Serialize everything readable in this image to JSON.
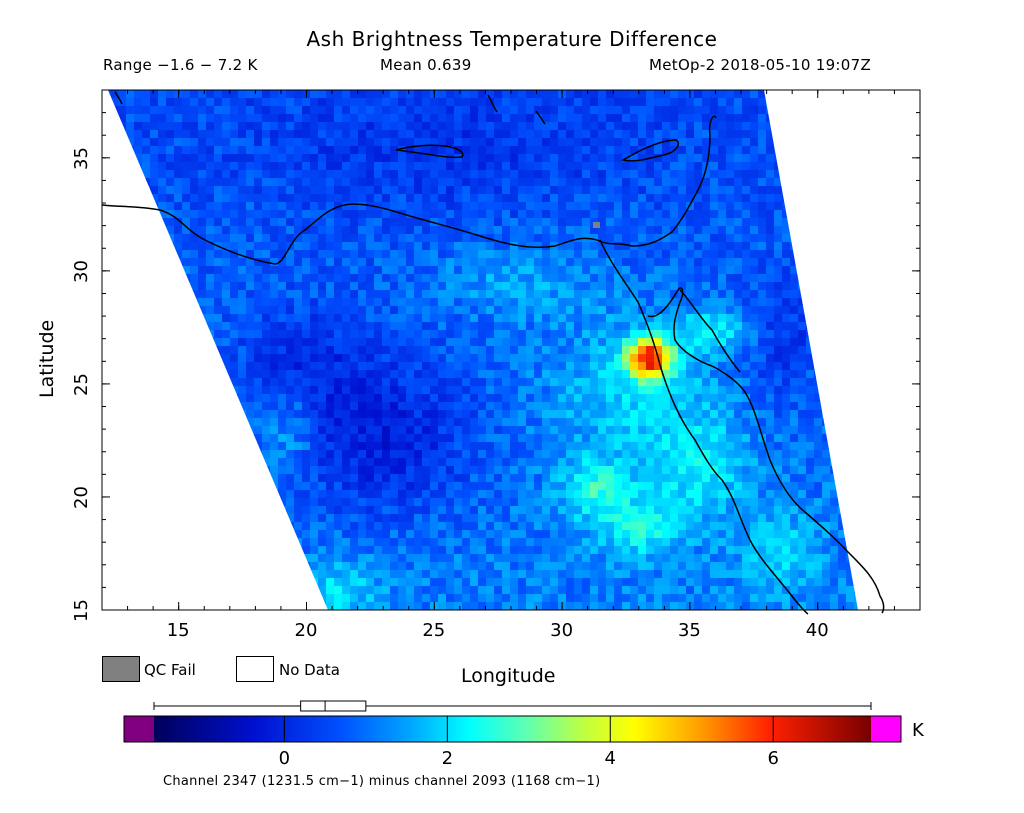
{
  "title": "Ash Brightness Temperature Difference",
  "header": {
    "range": "Range −1.6 − 7.2 K",
    "mean": "Mean 0.639",
    "satellite_time": "MetOp-2 2018-05-10 19:07Z"
  },
  "axes": {
    "x_label": "Longitude",
    "y_label": "Latitude",
    "x_ticks": [
      "15",
      "20",
      "25",
      "30",
      "35",
      "40"
    ],
    "y_ticks": [
      "15",
      "20",
      "25",
      "30",
      "35"
    ],
    "x_range": [
      12,
      44
    ],
    "y_range": [
      15,
      38
    ]
  },
  "legend": {
    "qc_fail": "QC Fail",
    "no_data": "No Data",
    "qc_fail_color": "#808080",
    "no_data_color": "#ffffff"
  },
  "colorbar": {
    "unit": "K",
    "ticks": [
      "0",
      "2",
      "4",
      "6"
    ],
    "tick_values": [
      0,
      2,
      4,
      6
    ],
    "range": [
      -1.6,
      7.2
    ],
    "under_color": "#800080",
    "over_color": "#ff00ff",
    "boxplot": {
      "min": -1.6,
      "q1": 0.2,
      "median": 0.5,
      "q3": 1.0,
      "max": 7.2
    }
  },
  "footer": "Channel 2347 (1231.5 cm−1) minus channel 2093 (1168 cm−1)",
  "map_features": {
    "hotspot_lonlat": [
      33.8,
      25.8
    ],
    "hotspot_value": 6.5
  }
}
